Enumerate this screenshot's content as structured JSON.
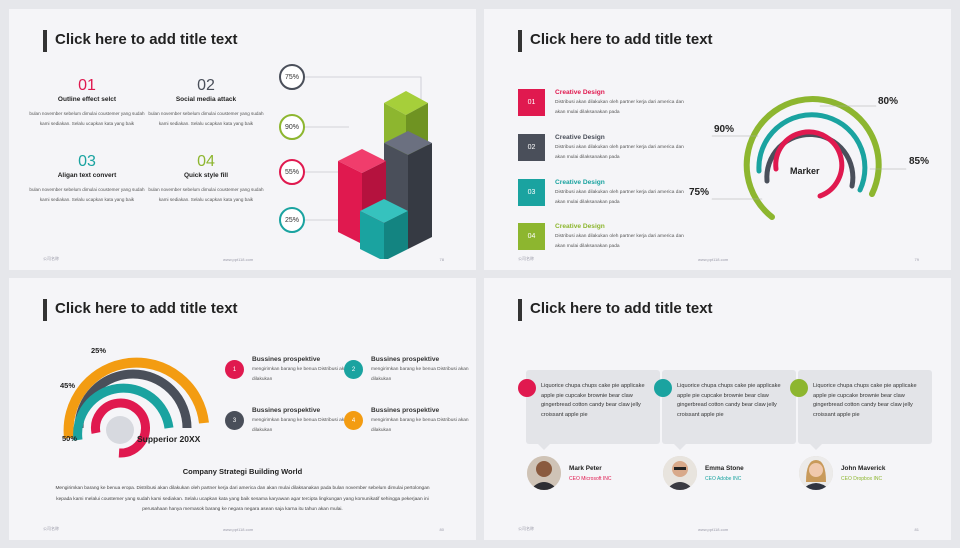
{
  "slides": {
    "s1": {
      "title": "Click here to add title text",
      "items": [
        {
          "num": "01",
          "head": "Outline effect selct",
          "desc": "bulan november sebelum dimulai coustemer yang sudah kami sediakan. Selalu ucapkan kata yang baik",
          "color": "#e0194f"
        },
        {
          "num": "02",
          "head": "Social media attack",
          "desc": "bulan november sebelum dimulai coustemer yang sudah kami sediakan. Selalu ucapkan kata yang baik",
          "color": "#4a4f5a"
        },
        {
          "num": "03",
          "head": "Aligan text convert",
          "desc": "bulan november sebelum dimulai coustemer yang sudah kami sediakan. Selalu ucapkan kata yang baik",
          "color": "#1aa3a0"
        },
        {
          "num": "04",
          "head": "Quick style fill",
          "desc": "bulan november sebelum dimulai coustemer yang sudah kami sediakan. Selalu ucapkan kata yang baik",
          "color": "#8db62f"
        }
      ],
      "pcts": [
        "75%",
        "90%",
        "55%",
        "25%"
      ],
      "foot_left": "公司名称",
      "foot_center": "www.ppt118.com",
      "page": "78"
    },
    "s2": {
      "title": "Click here to add title text",
      "items": [
        {
          "num": "01",
          "head": "Creative Design",
          "desc": "Distribusi akan dilakukan oleh partner kerja dari america dan akan mulai dilaksanakan pada",
          "color": "#e0194f"
        },
        {
          "num": "02",
          "head": "Creative Design",
          "desc": "Distribusi akan dilakukan oleh partner kerja dari america dan akan mulai dilaksanakan pada",
          "color": "#4a4f5a"
        },
        {
          "num": "03",
          "head": "Creative Design",
          "desc": "Distribusi akan dilakukan oleh partner kerja dari america dan akan mulai dilaksanakan pada",
          "color": "#1aa3a0"
        },
        {
          "num": "04",
          "head": "Creative Design",
          "desc": "Distribusi akan dilakukan oleh partner kerja dari america dan akan mulai dilaksanakan pada",
          "color": "#8db62f"
        }
      ],
      "marker": "Marker",
      "pcts": {
        "p80": "80%",
        "p90": "90%",
        "p85": "85%",
        "p75": "75%"
      },
      "foot_left": "公司名称",
      "foot_center": "www.ppt118.com",
      "page": "79"
    },
    "s3": {
      "title": "Click here to add title text",
      "pcts": {
        "p25": "25%",
        "p45": "45%",
        "p50": "50%"
      },
      "supperior": "Supperior 20XX",
      "items": [
        {
          "num": "1",
          "head": "Bussines prospektive",
          "desc": "mengirimkan barang ke benua Distribusi akan dilakukan",
          "color": "#e0194f"
        },
        {
          "num": "2",
          "head": "Bussines prospektive",
          "desc": "mengirimkan barang ke benua Distribusi akan dilakukan",
          "color": "#1aa3a0"
        },
        {
          "num": "3",
          "head": "Bussines prospektive",
          "desc": "mengirimkan barang ke benua Distribusi akan dilakukan",
          "color": "#4a4f5a"
        },
        {
          "num": "4",
          "head": "Bussines prospektive",
          "desc": "mengirimkan barang ke benua Distribusi akan dilakukan",
          "color": "#f39c12"
        }
      ],
      "company_title": "Company Strategi Building World",
      "company_desc": "Mengirimkan barang ke benua eropa. Distribusi akan dilakukan oleh partner kerja dari america dan akan mulai dilaksanakan pada bulan november sebelum dimulai pertolongan kepada kami melalui coustemer yang sudah kami sediakan. Selalu ucapkan kata yang baik sesama karyawan agar tercipta lingkungan yang komunikatif sehingga pekerjaan ini perusahaan hanya memasok barang ke negara negara asean saja karna itu tahun akan mulai.",
      "foot_left": "公司名称",
      "foot_center": "www.ppt118.com",
      "page": "80"
    },
    "s4": {
      "title": "Click here to add title text",
      "people": [
        {
          "quote": "Liquorice chupa chups cake pie applicake apple pie cupcake brownie bear claw gingerbread cotton candy bear claw jelly croissant apple pie",
          "name": "Mark Peter",
          "role": "CEO Microsoft INC",
          "color": "#e0194f"
        },
        {
          "quote": "Liquorice chupa chups cake pie applicake apple pie cupcake brownie bear claw gingerbread cotton candy bear claw jelly croissant apple pie",
          "name": "Emma Stone",
          "role": "CEO Adobe INC",
          "color": "#1aa3a0"
        },
        {
          "quote": "Liquorice chupa chups cake pie applicake apple pie cupcake brownie bear claw gingerbread cotton candy bear claw jelly croissant apple pie",
          "name": "John Maverick",
          "role": "CEO Dropbox INC",
          "color": "#8db62f"
        }
      ],
      "foot_left": "公司名称",
      "foot_center": "www.ppt118.com",
      "page": "81"
    }
  }
}
